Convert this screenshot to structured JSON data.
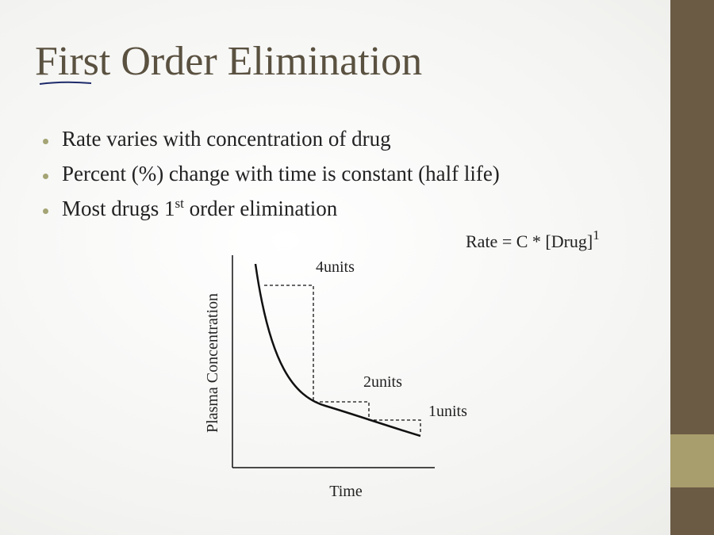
{
  "title": "First Order Elimination",
  "bullets": [
    {
      "text": "Rate varies with concentration of drug"
    },
    {
      "text": "Percent (%) change with time is constant (half life)"
    },
    {
      "parts": [
        "Most drugs 1",
        "st",
        " order elimination"
      ]
    }
  ],
  "formula": {
    "text": "Rate = C * [Drug]",
    "sup": "1"
  },
  "diagram": {
    "labels": [
      "4units",
      "2units",
      "1units"
    ],
    "y_axis_label": "Plasma Concentration",
    "x_axis_label": "Time"
  }
}
